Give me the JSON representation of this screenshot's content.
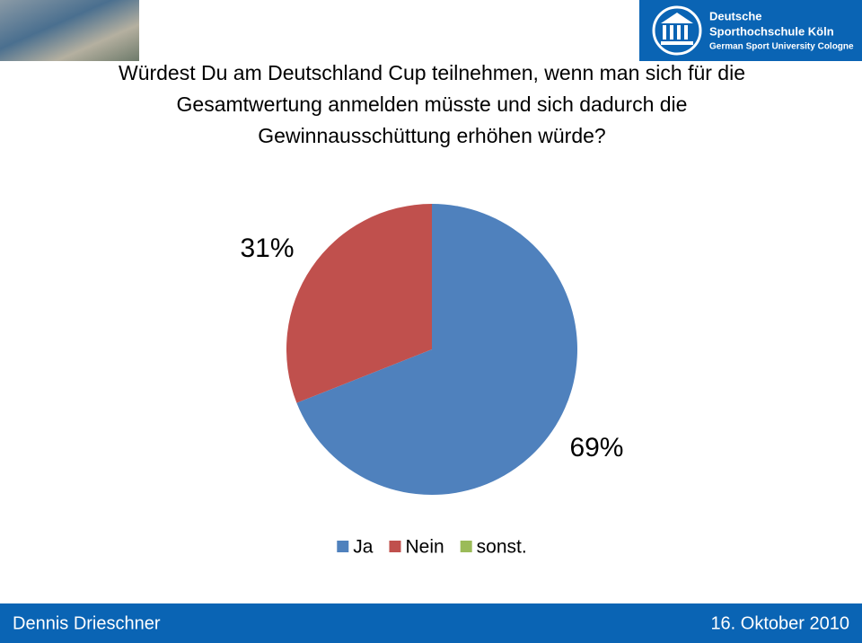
{
  "header": {
    "logo_name": [
      "Deutsche",
      "Sporthochschule Köln"
    ],
    "logo_subtitle": "German Sport University Cologne"
  },
  "chart_data": {
    "type": "pie",
    "title": [
      "Würdest Du am Deutschland Cup teilnehmen, wenn man sich für die",
      "Gesamtwertung anmelden müsste und sich dadurch die",
      "Gewinnausschüttung erhöhen würde?"
    ],
    "categories": [
      "Ja",
      "Nein",
      "sonst."
    ],
    "values": [
      69,
      31,
      0
    ],
    "value_labels": [
      "69%",
      "31%",
      null
    ],
    "colors": [
      "#4f81bd",
      "#c0504d",
      "#9bbb59"
    ],
    "legend": "bottom"
  },
  "footer": {
    "author": "Dennis Drieschner",
    "date": "16. Oktober 2010"
  }
}
